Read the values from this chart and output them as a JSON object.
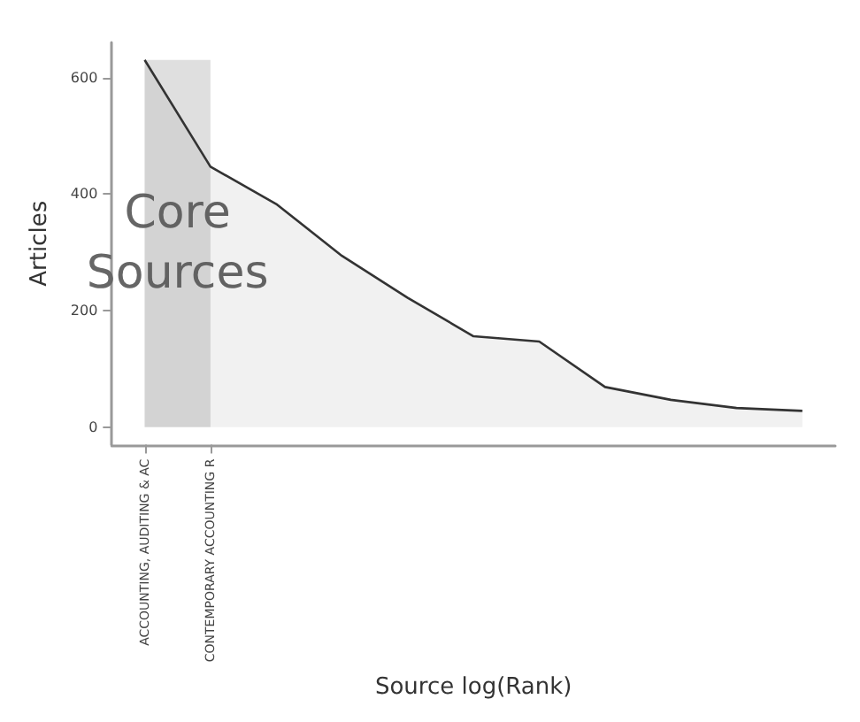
{
  "chart_data": {
    "type": "area",
    "xlabel": "Source log(Rank)",
    "ylabel": "Articles",
    "categories": [
      "ACCOUNTING, AUDITING & AC",
      "CONTEMPORARY ACCOUNTING R",
      null,
      null,
      null,
      null,
      null,
      null,
      null,
      null,
      null
    ],
    "series": [
      {
        "color": "#333333",
        "values": [
          630,
          447,
          383,
          294,
          222,
          156,
          147,
          69,
          47,
          33,
          28
        ]
      }
    ],
    "ylim": [
      -30,
      660
    ],
    "yticks": [
      0,
      200,
      400,
      600
    ],
    "bands": [
      {
        "axis": "x",
        "from": "ACCOUNTING, AUDITING & AC",
        "to": "CONTEMPORARY ACCOUNTING R",
        "label": "Core Sources",
        "color": "#b8b8b8"
      }
    ],
    "grid": false
  }
}
